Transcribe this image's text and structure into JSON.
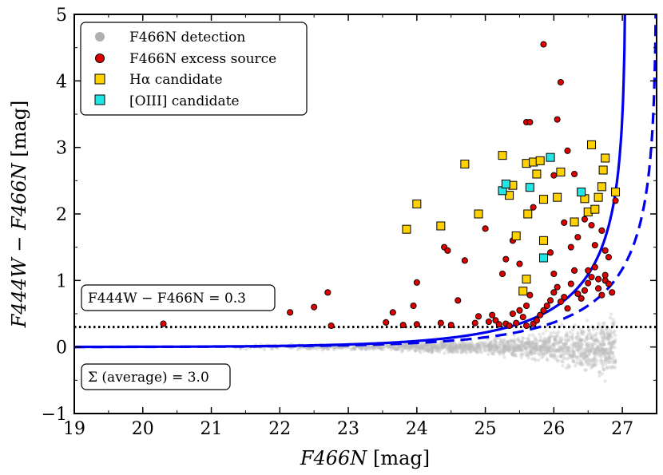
{
  "chart_data": {
    "type": "scatter",
    "title": "",
    "xlabel": "F466N [mag]",
    "xlabel_italic": "F466N",
    "xlabel_unit": "[mag]",
    "ylabel": "F444W − F466N [mag]",
    "ylabel_italic_1": "F444W",
    "ylabel_minus": "−",
    "ylabel_italic_2": "F466N",
    "ylabel_unit": "[mag]",
    "xlim": [
      19,
      27.5
    ],
    "ylim": [
      -1,
      5
    ],
    "x_ticks": [
      19,
      20,
      21,
      22,
      23,
      24,
      25,
      26,
      27
    ],
    "y_ticks": [
      -1,
      0,
      1,
      2,
      3,
      4,
      5
    ],
    "x_tick_labels": [
      "19",
      "20",
      "21",
      "22",
      "23",
      "24",
      "25",
      "26",
      "27"
    ],
    "y_tick_labels": [
      "−1",
      "0",
      "1",
      "2",
      "3",
      "4",
      "5"
    ],
    "legend": {
      "placement": "top-left",
      "entries": [
        {
          "label": "F466N detection",
          "marker": "circle",
          "color": "#b0b0b0"
        },
        {
          "label": "F466N excess source",
          "marker": "circle",
          "color": "#dd0000"
        },
        {
          "label": "Hα candidate",
          "marker": "square",
          "color": "#ffd200"
        },
        {
          "label": "[OIII] candidate",
          "marker": "square",
          "color": "#22e6e6"
        }
      ]
    },
    "annotations": [
      {
        "text": "F444W − F466N = 0.3",
        "placement": "middle-left"
      },
      {
        "text": "Σ (average) = 3.0",
        "placement": "bottom-left"
      }
    ],
    "reference_line": {
      "y": 0.3,
      "style": "dotted",
      "color": "#000000"
    },
    "curves": [
      {
        "name": "solid limit",
        "style": "solid",
        "color": "#0000ee",
        "asymptote_x": 27.05
      },
      {
        "name": "dashed limit",
        "style": "dashed",
        "color": "#0000ee",
        "asymptote_x": 27.5
      }
    ],
    "series": [
      {
        "name": "F466N excess source",
        "color": "#dd0000",
        "x": [
          20.3,
          22.15,
          22.5,
          22.7,
          22.75,
          23.55,
          23.65,
          23.8,
          23.95,
          24.0,
          24.0,
          24.35,
          24.4,
          24.45,
          24.5,
          24.6,
          24.7,
          24.85,
          24.9,
          25.0,
          25.05,
          25.1,
          25.15,
          25.2,
          25.25,
          25.3,
          25.35,
          25.4,
          25.45,
          25.5,
          25.55,
          25.6,
          25.6,
          25.65,
          25.7,
          25.75,
          25.8,
          25.85,
          25.9,
          25.95,
          26.0,
          26.05,
          26.1,
          26.15,
          26.2,
          26.25,
          26.3,
          26.35,
          26.4,
          26.45,
          26.5,
          26.55,
          26.6,
          26.65,
          26.7,
          26.75,
          26.8,
          26.85,
          26.9,
          25.85,
          26.05,
          26.1,
          26.2,
          26.3,
          25.6,
          25.65,
          25.7,
          26.0,
          26.15,
          26.25,
          26.35,
          26.45,
          26.55,
          26.6,
          26.7,
          26.75,
          26.8,
          25.5,
          25.3,
          25.4,
          26.0,
          25.95,
          26.5,
          26.65,
          26.75
        ],
        "y": [
          0.35,
          0.52,
          0.6,
          0.82,
          0.32,
          0.37,
          0.52,
          0.33,
          0.62,
          0.34,
          0.97,
          0.36,
          1.5,
          1.45,
          0.33,
          0.7,
          1.3,
          0.36,
          0.46,
          1.78,
          0.38,
          0.48,
          0.4,
          0.34,
          1.1,
          0.35,
          0.32,
          0.5,
          0.36,
          0.55,
          0.45,
          0.62,
          0.32,
          0.78,
          0.35,
          0.4,
          0.48,
          0.55,
          0.62,
          0.7,
          0.82,
          0.9,
          0.68,
          0.75,
          0.58,
          0.95,
          1.15,
          0.8,
          0.73,
          0.85,
          0.96,
          1.05,
          1.2,
          0.88,
          0.78,
          1.0,
          0.95,
          0.82,
          2.2,
          4.55,
          3.42,
          3.98,
          2.95,
          2.6,
          3.38,
          3.38,
          2.1,
          2.58,
          1.87,
          1.5,
          1.65,
          1.92,
          1.83,
          1.53,
          1.75,
          1.45,
          1.35,
          1.25,
          1.32,
          1.6,
          1.1,
          1.42,
          1.15,
          1.02,
          1.08
        ]
      },
      {
        "name": "Hα candidate",
        "color": "#ffd200",
        "x": [
          23.85,
          24.0,
          24.35,
          24.7,
          24.9,
          25.25,
          25.35,
          25.4,
          25.45,
          25.6,
          25.62,
          25.7,
          25.75,
          25.8,
          25.85,
          25.85,
          26.05,
          26.1,
          26.3,
          26.45,
          26.5,
          26.55,
          26.6,
          26.65,
          26.7,
          26.72,
          26.75,
          26.9,
          25.6,
          25.55
        ],
        "y": [
          1.77,
          2.15,
          1.82,
          2.75,
          2.0,
          2.88,
          2.28,
          2.43,
          1.67,
          2.76,
          2.0,
          2.78,
          2.6,
          2.8,
          2.22,
          1.6,
          2.25,
          2.63,
          1.88,
          2.23,
          2.03,
          3.04,
          2.07,
          2.25,
          2.41,
          2.66,
          2.84,
          2.33,
          1.02,
          0.84
        ]
      },
      {
        "name": "[OIII] candidate",
        "color": "#22e6e6",
        "x": [
          25.25,
          25.3,
          25.65,
          25.85,
          25.95,
          26.4
        ],
        "y": [
          2.35,
          2.45,
          2.4,
          1.34,
          2.85,
          2.33
        ]
      }
    ]
  }
}
